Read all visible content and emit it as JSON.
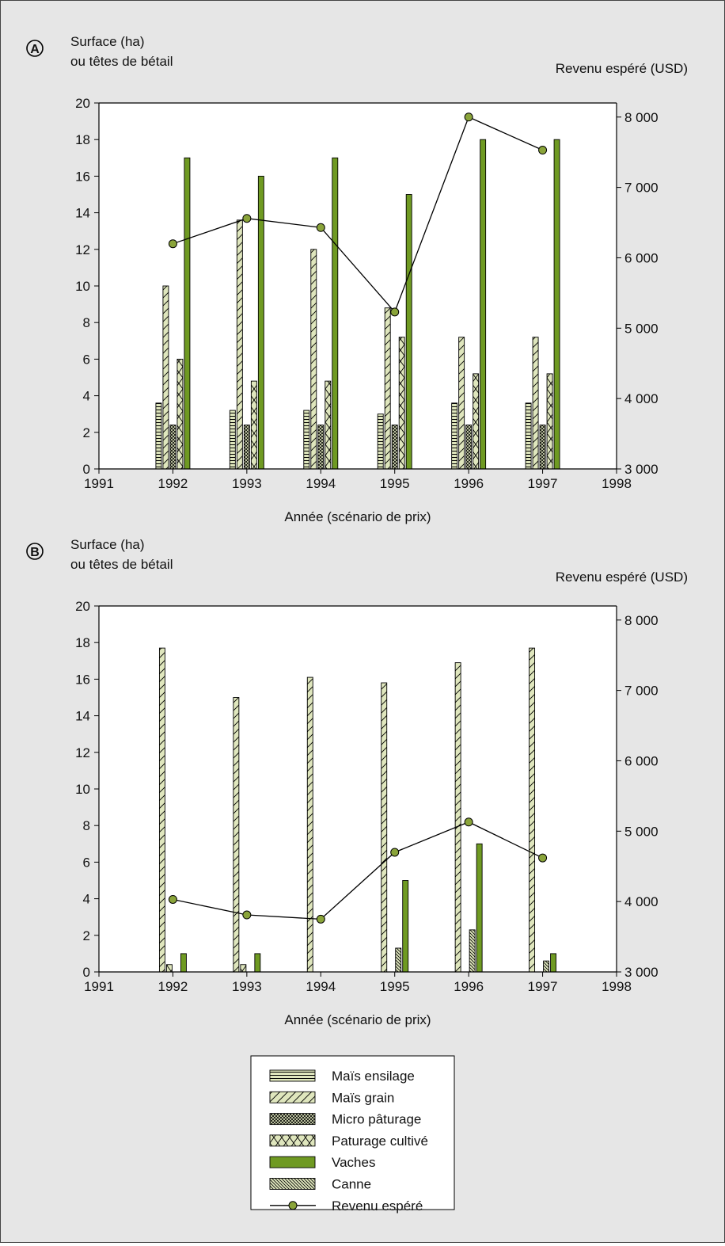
{
  "colors": {
    "background": "#e6e6e6",
    "plot_background": "#ffffff",
    "fill_light": "#dfe6bd",
    "vaches": "#6f9a22",
    "line": "#000000",
    "marker": "#8aa43a"
  },
  "chart_data": [
    {
      "type": "bar",
      "panel_label": "A",
      "title": "",
      "ylabel": [
        "Surface (ha)",
        "ou têtes de bétail"
      ],
      "y2label": "Revenu espéré (USD)",
      "xlabel": "Année (scénario de prix)",
      "xlim": [
        1991,
        1998
      ],
      "x_ticks": [
        "1991",
        "1992",
        "1993",
        "1994",
        "1995",
        "1996",
        "1997",
        "1998"
      ],
      "ylim": [
        0,
        20
      ],
      "y_ticks": [
        "0",
        "2",
        "4",
        "6",
        "8",
        "10",
        "12",
        "14",
        "16",
        "18",
        "20"
      ],
      "y2lim": [
        3000,
        8200
      ],
      "y2_ticks": [
        {
          "value": 3000,
          "label": "3 000"
        },
        {
          "value": 4000,
          "label": "4 000"
        },
        {
          "value": 5000,
          "label": "5 000"
        },
        {
          "value": 6000,
          "label": "6 000"
        },
        {
          "value": 7000,
          "label": "7 000"
        },
        {
          "value": 8000,
          "label": "8 000"
        }
      ],
      "categories": [
        1992,
        1993,
        1994,
        1995,
        1996,
        1997
      ],
      "series": [
        {
          "name": "Maïs ensilage",
          "pattern": "hbars",
          "values": [
            3.6,
            3.2,
            3.2,
            3.0,
            3.6,
            3.6
          ]
        },
        {
          "name": "Maïs grain",
          "pattern": "diag",
          "values": [
            10,
            13.6,
            12,
            8.8,
            7.2,
            7.2
          ]
        },
        {
          "name": "Micro pâturage",
          "pattern": "xfine",
          "values": [
            2.4,
            2.4,
            2.4,
            2.4,
            2.4,
            2.4
          ]
        },
        {
          "name": "Paturage cultivé",
          "pattern": "xcoarse",
          "values": [
            6,
            4.8,
            4.8,
            7.2,
            5.2,
            5.2
          ]
        },
        {
          "name": "Vaches",
          "pattern": "solid",
          "values": [
            17,
            16,
            17,
            15,
            18,
            18
          ]
        }
      ],
      "line_series": {
        "name": "Revenu espéré",
        "axis": "right",
        "x": [
          1992,
          1993,
          1994,
          1995,
          1996,
          1997
        ],
        "values": [
          6200,
          6560,
          6430,
          5230,
          8000,
          7530
        ]
      }
    },
    {
      "type": "bar",
      "panel_label": "B",
      "title": "",
      "ylabel": [
        "Surface (ha)",
        "ou têtes de bétail"
      ],
      "y2label": "Revenu espéré (USD)",
      "xlabel": "Année (scénario de prix)",
      "xlim": [
        1991,
        1998
      ],
      "x_ticks": [
        "1991",
        "1992",
        "1993",
        "1994",
        "1995",
        "1996",
        "1997",
        "1998"
      ],
      "ylim": [
        0,
        20
      ],
      "y_ticks": [
        "0",
        "2",
        "4",
        "6",
        "8",
        "10",
        "12",
        "14",
        "16",
        "18",
        "20"
      ],
      "y2lim": [
        3000,
        8200
      ],
      "y2_ticks": [
        {
          "value": 3000,
          "label": "3 000"
        },
        {
          "value": 4000,
          "label": "4 000"
        },
        {
          "value": 5000,
          "label": "5 000"
        },
        {
          "value": 6000,
          "label": "6 000"
        },
        {
          "value": 7000,
          "label": "7 000"
        },
        {
          "value": 8000,
          "label": "8 000"
        }
      ],
      "categories": [
        1992,
        1993,
        1994,
        1995,
        1996,
        1997
      ],
      "series": [
        {
          "name": "Maïs grain",
          "pattern": "diag",
          "values": [
            17.7,
            15,
            16.1,
            15.8,
            16.9,
            17.7
          ]
        },
        {
          "name": "Paturage cultivé",
          "pattern": "xcoarse",
          "values": [
            0.4,
            0.4,
            0,
            0,
            0,
            0
          ]
        },
        {
          "name": "Canne",
          "pattern": "back",
          "values": [
            0,
            0,
            0,
            1.3,
            2.3,
            0.6
          ]
        },
        {
          "name": "Vaches",
          "pattern": "solid",
          "values": [
            1,
            1,
            0,
            5,
            7,
            1
          ]
        }
      ],
      "line_series": {
        "name": "Revenu espéré",
        "axis": "right",
        "x": [
          1992,
          1993,
          1994,
          1995,
          1996,
          1997
        ],
        "values": [
          4030,
          3810,
          3750,
          4700,
          5130,
          4620
        ]
      }
    }
  ],
  "legend": [
    {
      "label": "Maïs ensilage",
      "pattern": "hbars"
    },
    {
      "label": "Maïs grain",
      "pattern": "diag"
    },
    {
      "label": "Micro pâturage",
      "pattern": "xfine"
    },
    {
      "label": "Paturage cultivé",
      "pattern": "xcoarse"
    },
    {
      "label": "Vaches",
      "pattern": "solid"
    },
    {
      "label": "Canne",
      "pattern": "back"
    },
    {
      "label": "Revenu espéré",
      "pattern": "line"
    }
  ]
}
